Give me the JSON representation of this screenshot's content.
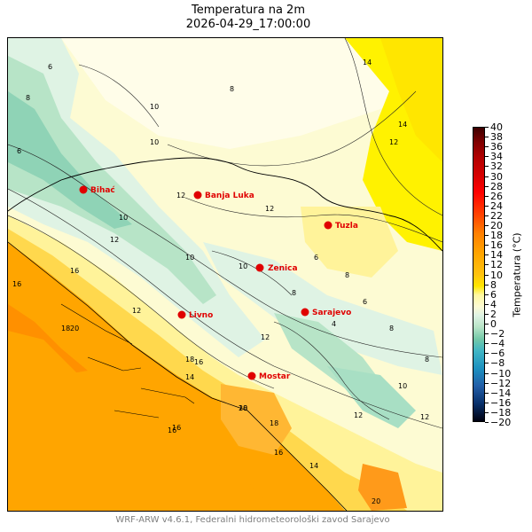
{
  "title": "Temperatura na 2m",
  "subtitle": "2026-04-29_17:00:00",
  "footer": "WRF-ARW v4.6.1, Federalni hidrometeorološki zavod Sarajevo",
  "colorbar": {
    "label": "Temperatura (°C)",
    "min": -20,
    "max": 40,
    "ticks": [
      "40",
      "38",
      "36",
      "34",
      "32",
      "30",
      "28",
      "26",
      "24",
      "22",
      "20",
      "18",
      "16",
      "14",
      "12",
      "10",
      "8",
      "6",
      "4",
      "2",
      "0",
      "−2",
      "−4",
      "−6",
      "−8",
      "−10",
      "−12",
      "−14",
      "−16",
      "−18",
      "−20"
    ]
  },
  "colors": {
    "deep_blue": "#08306b",
    "blue": "#2171b5",
    "teal": "#41b6c4",
    "mint": "#b7e4c7",
    "pale_green": "#dff3e4",
    "cream": "#fdfbd3",
    "yellow": "#fff200",
    "amber": "#ffc20e",
    "orange": "#ffa500",
    "dark_orange": "#ff7f00",
    "red": "#e31a1c",
    "dark_red": "#800000"
  },
  "cities": [
    {
      "name": "Bihać",
      "marker_color": "#e00000"
    },
    {
      "name": "Banja Luka",
      "marker_color": "#e00000"
    },
    {
      "name": "Tuzla",
      "marker_color": "#e00000"
    },
    {
      "name": "Zenica",
      "marker_color": "#e00000"
    },
    {
      "name": "Livno",
      "marker_color": "#e00000"
    },
    {
      "name": "Sarajevo",
      "marker_color": "#e00000"
    },
    {
      "name": "Mostar",
      "marker_color": "#e00000"
    }
  ],
  "contour_labels": [
    "6",
    "8",
    "10",
    "8",
    "6",
    "10",
    "14",
    "14",
    "12",
    "12",
    "12",
    "10",
    "12",
    "16",
    "16",
    "18",
    "20",
    "18",
    "16",
    "16",
    "18",
    "20",
    "16",
    "14",
    "12",
    "10",
    "8",
    "6",
    "10",
    "8",
    "6",
    "4",
    "8",
    "12",
    "12",
    "20",
    "18",
    "14",
    "16",
    "12",
    "10",
    "8"
  ]
}
